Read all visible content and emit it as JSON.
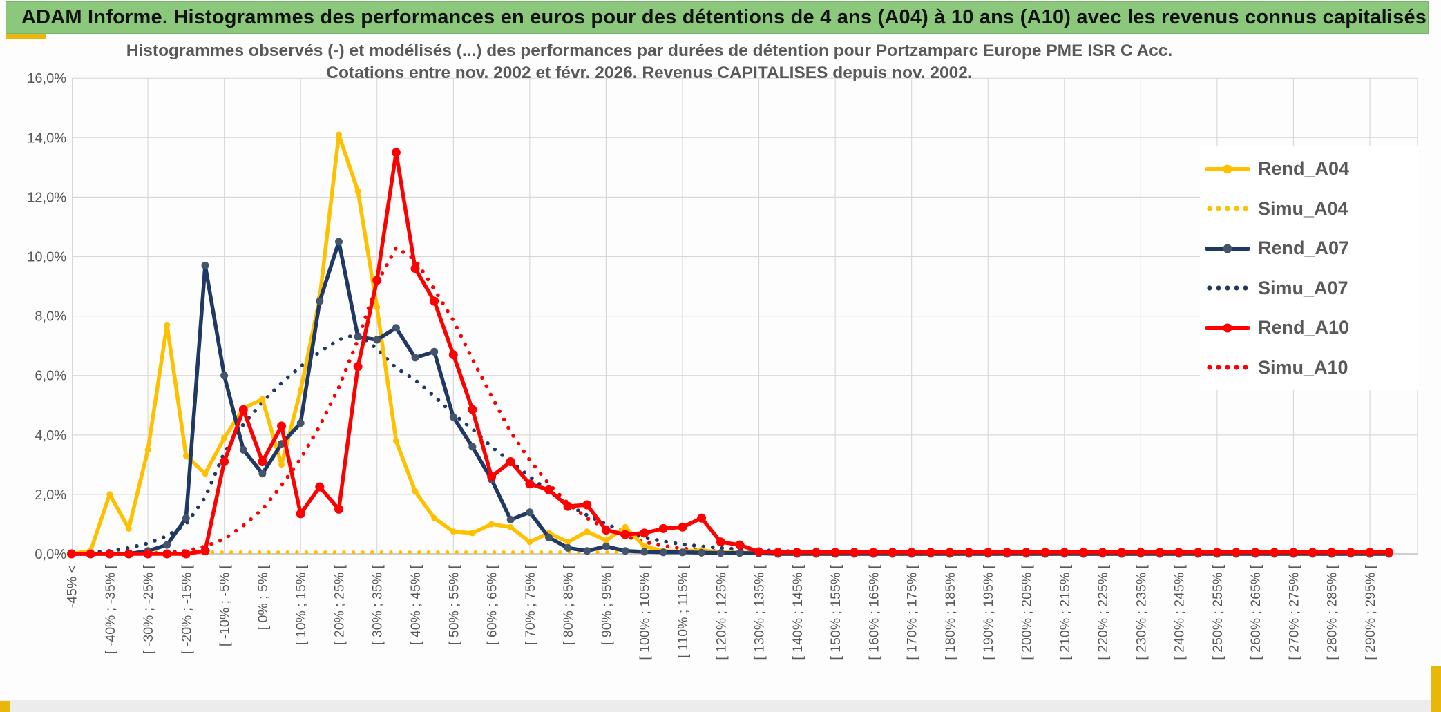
{
  "header": {
    "title": "ADAM Informe. Histogrammes des performances en euros pour des détentions de 4 ans (A04) à 10 ans (A10) avec les revenus connus capitalisés"
  },
  "colors": {
    "header_green": "#8CC87C",
    "gold_accent": "#E8B70A",
    "series_gold": "#FFC000",
    "series_navy": "#1F3864",
    "navy_marker": "#44546A",
    "series_red": "#FF0000",
    "grid": "#D9D9D9",
    "axis": "#BFBFBF",
    "text_gray": "#595959"
  },
  "chart_data": {
    "type": "line",
    "title": "Histogrammes observés (-) et modélisés (...) des performances par durées de détention pour Portzamparc Europe PME ISR C Acc.",
    "subtitle": "Cotations entre nov. 2002 et févr. 2026. Revenus CAPITALISES depuis nov. 2002.",
    "ylabel": "",
    "xlabel": "",
    "ylim": [
      0,
      16
    ],
    "grid": true,
    "legend_position": "right",
    "y_tick_labels": [
      "0,0%",
      "2,0%",
      "4,0%",
      "6,0%",
      "8,0%",
      "10,0%",
      "12,0%",
      "14,0%",
      "16,0%"
    ],
    "n_points": 70,
    "label_every_n_buckets": 2,
    "gridline_every_n_buckets": 4,
    "x_tick_labels": [
      "-45% <",
      "[ -40% ; -35% [",
      "[ -30% ; -25% [",
      "[ -20% ; -15% [",
      "[ -10% ; -5% [",
      "[ 0% ; 5% [",
      "[ 10% ; 15% [",
      "[ 20% ; 25% [",
      "[ 30% ; 35% [",
      "[ 40% ; 45% [",
      "[ 50% ; 55% [",
      "[ 60% ; 65% [",
      "[ 70% ; 75% [",
      "[ 80% ; 85% [",
      "[ 90% ; 95% [",
      "[ 100% ; 105% [",
      "[ 110% ; 115% [",
      "[ 120% ; 125% [",
      "[ 130% ; 135% [",
      "[ 140% ; 145% [",
      "[ 150% ; 155% [",
      "[ 160% ; 165% [",
      "[ 170% ; 175% [",
      "[ 180% ; 185% [",
      "[ 190% ; 195% [",
      "[ 200% ; 205% [",
      "[ 210% ; 215% [",
      "[ 220% ; 225% [",
      "[ 230% ; 235% [",
      "[ 240% ; 245% [",
      "[ 250% ; 255% [",
      "[ 260% ; 265% [",
      "[ 270% ; 275% [",
      "[ 280% ; 285% [",
      "[ 290% ; 295% ["
    ],
    "series": [
      {
        "name": "Rend_A04",
        "color": "#FFC000",
        "marker_color": "#FFC000",
        "style": "solid",
        "marker_r": 4.5,
        "values": [
          0,
          0.1,
          2.0,
          0.85,
          3.5,
          7.7,
          3.3,
          2.7,
          3.9,
          4.9,
          5.2,
          3.0,
          5.5,
          8.6,
          14.1,
          12.2,
          8.3,
          3.8,
          2.1,
          1.2,
          0.75,
          0.7,
          1.0,
          0.9,
          0.4,
          0.7,
          0.4,
          0.75,
          0.45,
          0.9,
          0.25,
          0.1,
          0.08,
          0.12,
          0.05,
          0.04,
          0.03,
          0,
          0,
          0,
          0,
          0,
          0,
          0,
          0,
          0,
          0,
          0,
          0,
          0,
          0,
          0,
          0,
          0,
          0,
          0,
          0,
          0,
          0,
          0,
          0,
          0,
          0,
          0,
          0,
          0,
          0,
          0,
          0,
          0
        ]
      },
      {
        "name": "Simu_A04",
        "color": "#FFC000",
        "style": "dotted",
        "values": [
          0.05,
          0.05,
          0.05,
          0.05,
          0.05,
          0.05,
          0.05,
          0.05,
          0.05,
          0.05,
          0.05,
          0.05,
          0.05,
          0.05,
          0.05,
          0.05,
          0.05,
          0.05,
          0.05,
          0.05,
          0.05,
          0.05,
          0.05,
          0.05,
          0.05,
          0.05,
          0.05,
          0.05,
          0.05,
          0.05,
          0.05,
          0.05,
          0.05,
          0.05,
          0.05,
          0.05,
          0.05,
          0.05,
          0.05,
          0.05,
          0.05,
          0.05,
          0.05,
          0.05,
          0.05,
          0.05,
          0.05,
          0.05,
          0.05,
          0.05,
          0.05,
          0.05,
          0.05,
          0.05,
          0.05,
          0.05,
          0.05,
          0.05,
          0.05,
          0.05,
          0.05,
          0.05,
          0.05,
          0.05,
          0.05,
          0.05,
          0.05,
          0.05,
          0.05,
          0.05
        ]
      },
      {
        "name": "Rend_A07",
        "color": "#1F3864",
        "marker_color": "#44546A",
        "style": "solid",
        "marker_r": 5.5,
        "values": [
          0,
          0,
          0,
          0,
          0.1,
          0.3,
          1.2,
          9.7,
          6.0,
          3.5,
          2.7,
          3.7,
          4.4,
          8.5,
          10.5,
          7.3,
          7.2,
          7.6,
          6.6,
          6.8,
          4.6,
          3.6,
          2.5,
          1.15,
          1.4,
          0.55,
          0.2,
          0.1,
          0.25,
          0.1,
          0.07,
          0.05,
          0.05,
          0.04,
          0.03,
          0.03,
          0.02,
          0,
          0,
          0,
          0,
          0,
          0,
          0,
          0,
          0,
          0,
          0,
          0,
          0,
          0,
          0,
          0,
          0,
          0,
          0,
          0,
          0,
          0,
          0,
          0,
          0,
          0,
          0,
          0,
          0,
          0,
          0,
          0,
          0
        ]
      },
      {
        "name": "Simu_A07",
        "color": "#1F3864",
        "style": "dotted",
        "values": [
          0,
          0.05,
          0.1,
          0.2,
          0.35,
          0.6,
          1.0,
          1.9,
          3.4,
          4.35,
          5.1,
          5.75,
          6.3,
          6.8,
          7.2,
          7.4,
          6.9,
          6.25,
          5.85,
          5.3,
          4.7,
          4.2,
          3.6,
          3.1,
          2.6,
          2.1,
          1.65,
          1.3,
          1.0,
          0.75,
          0.55,
          0.42,
          0.32,
          0.25,
          0.2,
          0.15,
          0.12,
          0.1,
          0.08,
          0.06,
          0.05,
          0.04,
          0.03,
          0.02,
          0.02,
          0,
          0,
          0,
          0,
          0,
          0,
          0,
          0,
          0,
          0,
          0,
          0,
          0,
          0,
          0,
          0,
          0,
          0,
          0,
          0,
          0,
          0,
          0,
          0,
          0
        ]
      },
      {
        "name": "Rend_A10",
        "color": "#FF0000",
        "marker_color": "#FF0000",
        "style": "solid",
        "marker_r": 6.5,
        "values": [
          0,
          0,
          0,
          0,
          0,
          0,
          0,
          0.1,
          3.1,
          4.85,
          3.1,
          4.3,
          1.35,
          2.25,
          1.5,
          6.3,
          9.2,
          13.5,
          9.6,
          8.5,
          6.7,
          4.85,
          2.6,
          3.1,
          2.35,
          2.15,
          1.6,
          1.65,
          0.8,
          0.65,
          0.7,
          0.85,
          0.9,
          1.2,
          0.4,
          0.3,
          0.07,
          0.05,
          0.05,
          0.05,
          0.05,
          0.05,
          0.05,
          0.05,
          0.05,
          0.05,
          0.05,
          0.05,
          0.05,
          0.05,
          0.05,
          0.05,
          0.05,
          0.05,
          0.05,
          0.05,
          0.05,
          0.05,
          0.05,
          0.05,
          0.05,
          0.05,
          0.05,
          0.05,
          0.05,
          0.05,
          0.05,
          0.05,
          0.05,
          0.05
        ]
      },
      {
        "name": "Simu_A10",
        "color": "#FF0000",
        "style": "dotted",
        "values": [
          0,
          0,
          0,
          0,
          0,
          0.05,
          0.1,
          0.25,
          0.5,
          0.95,
          1.5,
          2.3,
          3.2,
          4.3,
          5.6,
          7.2,
          9.1,
          10.3,
          9.9,
          8.9,
          7.85,
          6.55,
          5.3,
          4.1,
          3.15,
          2.35,
          1.7,
          1.2,
          0.85,
          0.6,
          0.4,
          0.27,
          0.18,
          0.12,
          0.08,
          0.06,
          0.05,
          0.04,
          0.03,
          0.02,
          0,
          0,
          0,
          0,
          0,
          0,
          0,
          0,
          0,
          0,
          0,
          0,
          0,
          0,
          0,
          0,
          0,
          0,
          0,
          0,
          0,
          0,
          0,
          0,
          0,
          0,
          0,
          0,
          0,
          0
        ]
      }
    ]
  }
}
